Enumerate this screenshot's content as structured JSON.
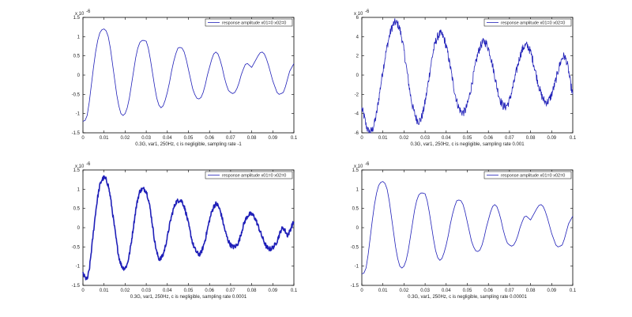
{
  "colors": {
    "line": "#1f1fb8",
    "axis": "#000000",
    "text": "#222222",
    "background": "#ffffff"
  },
  "chart_data": [
    {
      "type": "line",
      "title": "",
      "xlabel": "0.3G, var1, 250Hz, c is negligible, sampling rate -1",
      "ylabel": "",
      "exponent_label": "x 10",
      "exponent_power": "-6",
      "xlim": [
        0,
        0.1
      ],
      "ylim": [
        -1.5,
        1.5
      ],
      "xticks": [
        "0",
        "0.01",
        "0.02",
        "0.03",
        "0.04",
        "0.05",
        "0.06",
        "0.07",
        "0.08",
        "0.09",
        "0.1"
      ],
      "yticks": [
        "-1.5",
        "-1",
        "-0.5",
        "0",
        "0.5",
        "1",
        "1.5"
      ],
      "legend": {
        "position": "top-right",
        "label": "response amplitude    x01=0  x02=0"
      },
      "grid": false,
      "series": [
        {
          "x": [
            0,
            0.001,
            0.002,
            0.003,
            0.004,
            0.005,
            0.006,
            0.007,
            0.008,
            0.009,
            0.01,
            0.011,
            0.012,
            0.013,
            0.014,
            0.015,
            0.016,
            0.017,
            0.018,
            0.019,
            0.02,
            0.021,
            0.022,
            0.023,
            0.024,
            0.025,
            0.026,
            0.027,
            0.028,
            0.029,
            0.03,
            0.031,
            0.032,
            0.033,
            0.034,
            0.035,
            0.036,
            0.037,
            0.038,
            0.039,
            0.04,
            0.041,
            0.042,
            0.043,
            0.044,
            0.045,
            0.046,
            0.047,
            0.048,
            0.049,
            0.05,
            0.051,
            0.052,
            0.053,
            0.054,
            0.055,
            0.056,
            0.057,
            0.058,
            0.059,
            0.06,
            0.061,
            0.062,
            0.063,
            0.064,
            0.065,
            0.066,
            0.067,
            0.068,
            0.069,
            0.07,
            0.071,
            0.072,
            0.073,
            0.074,
            0.075,
            0.076,
            0.077,
            0.078,
            0.079,
            0.08,
            0.081,
            0.082,
            0.083,
            0.084,
            0.085,
            0.086,
            0.087,
            0.088,
            0.089,
            0.09,
            0.091,
            0.092,
            0.093,
            0.094,
            0.095,
            0.096,
            0.097,
            0.098,
            0.099,
            0.1
          ],
          "y": [
            -1.2,
            -1.18,
            -1.05,
            -0.7,
            -0.25,
            0.2,
            0.6,
            0.9,
            1.1,
            1.18,
            1.2,
            1.15,
            1.0,
            0.7,
            0.3,
            -0.1,
            -0.5,
            -0.8,
            -1.0,
            -1.05,
            -1.0,
            -0.85,
            -0.6,
            -0.25,
            0.1,
            0.45,
            0.7,
            0.85,
            0.9,
            0.9,
            0.88,
            0.7,
            0.4,
            0.05,
            -0.3,
            -0.6,
            -0.78,
            -0.85,
            -0.8,
            -0.65,
            -0.45,
            -0.2,
            0.1,
            0.35,
            0.55,
            0.7,
            0.72,
            0.7,
            0.6,
            0.4,
            0.15,
            -0.1,
            -0.35,
            -0.5,
            -0.6,
            -0.62,
            -0.58,
            -0.45,
            -0.25,
            0.0,
            0.2,
            0.4,
            0.55,
            0.6,
            0.55,
            0.4,
            0.2,
            -0.05,
            -0.25,
            -0.4,
            -0.45,
            -0.48,
            -0.45,
            -0.35,
            -0.2,
            0.0,
            0.15,
            0.28,
            0.3,
            0.25,
            0.2,
            0.3,
            0.4,
            0.5,
            0.58,
            0.6,
            0.55,
            0.42,
            0.25,
            0.05,
            -0.15,
            -0.3,
            -0.45,
            -0.5,
            -0.48,
            -0.45,
            -0.3,
            -0.1,
            0.1,
            0.2,
            0.3
          ]
        }
      ],
      "noise": 0
    },
    {
      "type": "line",
      "title": "",
      "xlabel": "0.3G, var1, 250Hz, c is negligible, sampling rate 0.001",
      "ylabel": "",
      "exponent_label": "x 10",
      "exponent_power": "-6",
      "xlim": [
        0,
        0.1
      ],
      "ylim": [
        -6,
        6
      ],
      "xticks": [
        "0",
        "0.01",
        "0.02",
        "0.03",
        "0.04",
        "0.05",
        "0.06",
        "0.07",
        "0.08",
        "0.09",
        "0.1"
      ],
      "yticks": [
        "-6",
        "-4",
        "-2",
        "0",
        "2",
        "4",
        "6"
      ],
      "legend": {
        "position": "top-right",
        "label": "response amplitude    x01=0  x02=0"
      },
      "grid": false,
      "series": [
        {
          "x": [
            0,
            0.001,
            0.002,
            0.003,
            0.004,
            0.005,
            0.006,
            0.007,
            0.008,
            0.009,
            0.01,
            0.011,
            0.012,
            0.013,
            0.014,
            0.015,
            0.016,
            0.017,
            0.018,
            0.019,
            0.02,
            0.021,
            0.022,
            0.023,
            0.024,
            0.025,
            0.026,
            0.027,
            0.028,
            0.029,
            0.03,
            0.031,
            0.032,
            0.033,
            0.034,
            0.035,
            0.036,
            0.037,
            0.038,
            0.039,
            0.04,
            0.041,
            0.042,
            0.043,
            0.044,
            0.045,
            0.046,
            0.047,
            0.048,
            0.049,
            0.05,
            0.051,
            0.052,
            0.053,
            0.054,
            0.055,
            0.056,
            0.057,
            0.058,
            0.059,
            0.06,
            0.061,
            0.062,
            0.063,
            0.064,
            0.065,
            0.066,
            0.067,
            0.068,
            0.069,
            0.07,
            0.071,
            0.072,
            0.073,
            0.074,
            0.075,
            0.076,
            0.077,
            0.078,
            0.079,
            0.08,
            0.081,
            0.082,
            0.083,
            0.084,
            0.085,
            0.086,
            0.087,
            0.088,
            0.089,
            0.09,
            0.091,
            0.092,
            0.093,
            0.094,
            0.095,
            0.096,
            0.097,
            0.098,
            0.099,
            0.1
          ],
          "y": [
            -3.5,
            -4.2,
            -5.2,
            -5.8,
            -5.9,
            -5.7,
            -5.0,
            -4.0,
            -2.5,
            -1.0,
            0.5,
            1.8,
            3.0,
            4.0,
            4.8,
            5.3,
            5.5,
            5.3,
            4.8,
            3.8,
            2.5,
            1.0,
            -0.5,
            -2.0,
            -3.2,
            -4.0,
            -4.6,
            -4.8,
            -4.6,
            -3.9,
            -2.8,
            -1.5,
            0.0,
            1.4,
            2.6,
            3.5,
            4.0,
            4.3,
            4.2,
            3.8,
            3.0,
            2.0,
            0.8,
            -0.5,
            -1.7,
            -2.7,
            -3.4,
            -3.8,
            -3.9,
            -3.7,
            -3.1,
            -2.2,
            -1.1,
            0.1,
            1.2,
            2.2,
            2.9,
            3.3,
            3.5,
            3.3,
            2.8,
            2.0,
            1.0,
            -0.1,
            -1.2,
            -2.1,
            -2.8,
            -3.2,
            -3.3,
            -3.1,
            -2.6,
            -1.8,
            -0.9,
            0.1,
            1.1,
            2.0,
            2.6,
            3.0,
            3.1,
            2.9,
            2.4,
            1.6,
            0.7,
            -0.3,
            -1.2,
            -2.0,
            -2.5,
            -2.8,
            -2.8,
            -2.5,
            -2.0,
            -1.3,
            -0.5,
            0.4,
            1.2,
            1.8,
            2.0,
            1.5,
            0.5,
            -1.0,
            -2.0
          ]
        }
      ],
      "noise": 0.45
    },
    {
      "type": "line",
      "title": "",
      "xlabel": "0.3G, var1, 250Hz, c is negligible, sampling rate 0.0001",
      "ylabel": "",
      "exponent_label": "x 10",
      "exponent_power": "-6",
      "xlim": [
        0,
        0.1
      ],
      "ylim": [
        -1.5,
        1.5
      ],
      "xticks": [
        "0",
        "0.01",
        "0.02",
        "0.03",
        "0.04",
        "0.05",
        "0.06",
        "0.07",
        "0.08",
        "0.09",
        "0.1"
      ],
      "yticks": [
        "-1.5",
        "-1",
        "-0.5",
        "0",
        "0.5",
        "1",
        "1.5"
      ],
      "legend": {
        "position": "top-right",
        "label": "response amplitude    x01=0  x02=0"
      },
      "grid": false,
      "series": [
        {
          "x": [
            0,
            0.001,
            0.002,
            0.003,
            0.004,
            0.005,
            0.006,
            0.007,
            0.008,
            0.009,
            0.01,
            0.011,
            0.012,
            0.013,
            0.014,
            0.015,
            0.016,
            0.017,
            0.018,
            0.019,
            0.02,
            0.021,
            0.022,
            0.023,
            0.024,
            0.025,
            0.026,
            0.027,
            0.028,
            0.029,
            0.03,
            0.031,
            0.032,
            0.033,
            0.034,
            0.035,
            0.036,
            0.037,
            0.038,
            0.039,
            0.04,
            0.041,
            0.042,
            0.043,
            0.044,
            0.045,
            0.046,
            0.047,
            0.048,
            0.049,
            0.05,
            0.051,
            0.052,
            0.053,
            0.054,
            0.055,
            0.056,
            0.057,
            0.058,
            0.059,
            0.06,
            0.061,
            0.062,
            0.063,
            0.064,
            0.065,
            0.066,
            0.067,
            0.068,
            0.069,
            0.07,
            0.071,
            0.072,
            0.073,
            0.074,
            0.075,
            0.076,
            0.077,
            0.078,
            0.079,
            0.08,
            0.081,
            0.082,
            0.083,
            0.084,
            0.085,
            0.086,
            0.087,
            0.088,
            0.089,
            0.09,
            0.091,
            0.092,
            0.093,
            0.094,
            0.095,
            0.096,
            0.097,
            0.098,
            0.099,
            0.1
          ],
          "y": [
            -1.2,
            -1.3,
            -1.35,
            -1.1,
            -0.6,
            -0.1,
            0.4,
            0.8,
            1.1,
            1.25,
            1.3,
            1.25,
            1.1,
            0.8,
            0.4,
            0.0,
            -0.4,
            -0.75,
            -0.95,
            -1.05,
            -1.05,
            -0.95,
            -0.7,
            -0.35,
            0.05,
            0.45,
            0.75,
            0.95,
            1.0,
            1.0,
            0.95,
            0.75,
            0.45,
            0.05,
            -0.35,
            -0.65,
            -0.8,
            -0.8,
            -0.7,
            -0.5,
            -0.25,
            0.05,
            0.3,
            0.5,
            0.65,
            0.7,
            0.72,
            0.68,
            0.55,
            0.35,
            0.1,
            -0.15,
            -0.4,
            -0.55,
            -0.65,
            -0.7,
            -0.65,
            -0.5,
            -0.3,
            -0.05,
            0.2,
            0.4,
            0.55,
            0.62,
            0.58,
            0.45,
            0.25,
            0.0,
            -0.2,
            -0.35,
            -0.45,
            -0.5,
            -0.5,
            -0.45,
            -0.35,
            -0.15,
            0.05,
            0.2,
            0.3,
            0.35,
            0.35,
            0.3,
            0.2,
            0.05,
            -0.1,
            -0.25,
            -0.38,
            -0.5,
            -0.55,
            -0.55,
            -0.52,
            -0.45,
            -0.35,
            -0.2,
            -0.05,
            0.0,
            -0.1,
            -0.2,
            -0.1,
            0.05,
            0.15
          ]
        }
      ],
      "noise": 0.06
    },
    {
      "type": "line",
      "title": "",
      "xlabel": "0.3G, var1, 250Hz, c is negligible, sampling rate 0.00001",
      "ylabel": "",
      "exponent_label": "x 10",
      "exponent_power": "-6",
      "xlim": [
        0,
        0.1
      ],
      "ylim": [
        -1.5,
        1.5
      ],
      "xticks": [
        "0",
        "0.01",
        "0.02",
        "0.03",
        "0.04",
        "0.05",
        "0.06",
        "0.07",
        "0.08",
        "0.09",
        "0.1"
      ],
      "yticks": [
        "-1.5",
        "-1",
        "-0.5",
        "0",
        "0.5",
        "1",
        "1.5"
      ],
      "legend": {
        "position": "top-right",
        "label": "response amplitude    x01=0  x02=0"
      },
      "grid": false,
      "series": [
        {
          "x": [
            0,
            0.001,
            0.002,
            0.003,
            0.004,
            0.005,
            0.006,
            0.007,
            0.008,
            0.009,
            0.01,
            0.011,
            0.012,
            0.013,
            0.014,
            0.015,
            0.016,
            0.017,
            0.018,
            0.019,
            0.02,
            0.021,
            0.022,
            0.023,
            0.024,
            0.025,
            0.026,
            0.027,
            0.028,
            0.029,
            0.03,
            0.031,
            0.032,
            0.033,
            0.034,
            0.035,
            0.036,
            0.037,
            0.038,
            0.039,
            0.04,
            0.041,
            0.042,
            0.043,
            0.044,
            0.045,
            0.046,
            0.047,
            0.048,
            0.049,
            0.05,
            0.051,
            0.052,
            0.053,
            0.054,
            0.055,
            0.056,
            0.057,
            0.058,
            0.059,
            0.06,
            0.061,
            0.062,
            0.063,
            0.064,
            0.065,
            0.066,
            0.067,
            0.068,
            0.069,
            0.07,
            0.071,
            0.072,
            0.073,
            0.074,
            0.075,
            0.076,
            0.077,
            0.078,
            0.079,
            0.08,
            0.081,
            0.082,
            0.083,
            0.084,
            0.085,
            0.086,
            0.087,
            0.088,
            0.089,
            0.09,
            0.091,
            0.092,
            0.093,
            0.094,
            0.095,
            0.096,
            0.097,
            0.098,
            0.099,
            0.1
          ],
          "y": [
            -1.2,
            -1.18,
            -1.05,
            -0.7,
            -0.25,
            0.2,
            0.6,
            0.9,
            1.1,
            1.18,
            1.2,
            1.15,
            1.0,
            0.7,
            0.3,
            -0.1,
            -0.5,
            -0.8,
            -1.0,
            -1.05,
            -1.0,
            -0.85,
            -0.6,
            -0.25,
            0.1,
            0.45,
            0.7,
            0.85,
            0.9,
            0.9,
            0.88,
            0.7,
            0.4,
            0.05,
            -0.3,
            -0.6,
            -0.78,
            -0.85,
            -0.8,
            -0.65,
            -0.45,
            -0.2,
            0.1,
            0.35,
            0.55,
            0.7,
            0.72,
            0.7,
            0.6,
            0.4,
            0.15,
            -0.1,
            -0.35,
            -0.5,
            -0.6,
            -0.62,
            -0.58,
            -0.45,
            -0.25,
            0.0,
            0.2,
            0.4,
            0.55,
            0.6,
            0.55,
            0.4,
            0.2,
            -0.05,
            -0.25,
            -0.4,
            -0.45,
            -0.48,
            -0.45,
            -0.35,
            -0.2,
            0.0,
            0.15,
            0.28,
            0.3,
            0.25,
            0.2,
            0.3,
            0.4,
            0.5,
            0.58,
            0.6,
            0.55,
            0.42,
            0.25,
            0.05,
            -0.15,
            -0.3,
            -0.45,
            -0.5,
            -0.48,
            -0.45,
            -0.3,
            -0.1,
            0.1,
            0.2,
            0.3
          ]
        }
      ],
      "noise": 0
    }
  ]
}
